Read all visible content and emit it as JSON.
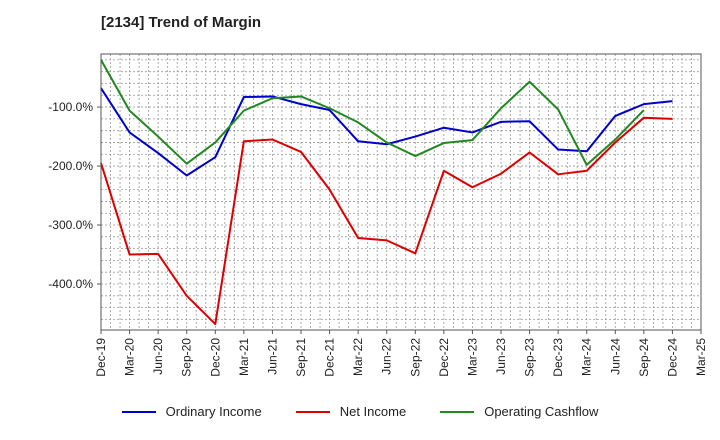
{
  "chart_data": {
    "type": "line",
    "title": "[2134]  Trend of Margin",
    "xlabel": "",
    "ylabel": "",
    "x": [
      "Dec-19",
      "Mar-20",
      "Jun-20",
      "Sep-20",
      "Dec-20",
      "Mar-21",
      "Jun-21",
      "Sep-21",
      "Dec-21",
      "Mar-22",
      "Jun-22",
      "Sep-22",
      "Dec-22",
      "Mar-23",
      "Jun-23",
      "Sep-23",
      "Dec-23",
      "Mar-24",
      "Jun-24",
      "Sep-24",
      "Dec-24",
      "Mar-25"
    ],
    "ylim": [
      -478,
      -10
    ],
    "yticks": [
      -100,
      -200,
      -300,
      -400
    ],
    "ytick_labels": [
      "-100.0%",
      "-200.0%",
      "-300.0%",
      "-400.0%"
    ],
    "grid": true,
    "legend_position": "bottom",
    "series": [
      {
        "name": "Ordinary Income",
        "color": "#0000cc",
        "values": [
          -68,
          -143,
          -178,
          -216,
          -185,
          -83,
          -82,
          -95,
          -105,
          -158,
          -163,
          -150,
          -135,
          -143,
          -125,
          -124,
          -172,
          -175,
          -115,
          -95,
          -90,
          null
        ]
      },
      {
        "name": "Net Income",
        "color": "#dd0000",
        "values": [
          -195,
          -350,
          -349,
          -420,
          -468,
          -158,
          -155,
          -176,
          -240,
          -322,
          -326,
          -348,
          -208,
          -236,
          -213,
          -177,
          -214,
          -208,
          -160,
          -118,
          -120,
          null
        ]
      },
      {
        "name": "Operating Cashflow",
        "color": "#228822",
        "values": [
          -20,
          -106,
          -150,
          -196,
          -160,
          -106,
          -85,
          -82,
          -102,
          -126,
          -160,
          -183,
          -161,
          -156,
          -102,
          -57,
          -104,
          -198,
          -155,
          -105,
          null,
          null
        ]
      }
    ]
  }
}
